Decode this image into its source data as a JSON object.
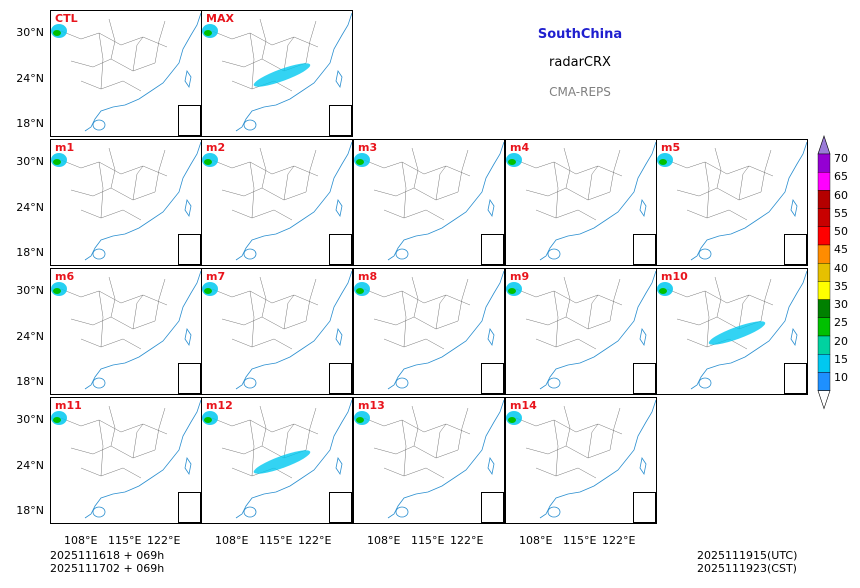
{
  "info": {
    "region": "SouthChina",
    "variable": "radarCRX",
    "model": "CMA-REPS"
  },
  "panels": [
    {
      "label": "CTL"
    },
    {
      "label": "MAX"
    },
    {
      "label": "m1"
    },
    {
      "label": "m2"
    },
    {
      "label": "m3"
    },
    {
      "label": "m4"
    },
    {
      "label": "m5"
    },
    {
      "label": "m6"
    },
    {
      "label": "m7"
    },
    {
      "label": "m8"
    },
    {
      "label": "m9"
    },
    {
      "label": "m10"
    },
    {
      "label": "m11"
    },
    {
      "label": "m12"
    },
    {
      "label": "m13"
    },
    {
      "label": "m14"
    }
  ],
  "axes": {
    "lat_labels": [
      "30°N",
      "24°N",
      "18°N"
    ],
    "lon_labels": [
      "108°E",
      "115°E",
      "122°E"
    ]
  },
  "colorbar": {
    "levels": [
      "10",
      "15",
      "20",
      "25",
      "30",
      "35",
      "40",
      "45",
      "50",
      "55",
      "60",
      "65",
      "70"
    ],
    "colors": [
      "#1e90ff",
      "#00c8f0",
      "#00d2a0",
      "#00c000",
      "#008000",
      "#ffff00",
      "#e6c000",
      "#ff8c00",
      "#ff0000",
      "#c80000",
      "#b40000",
      "#ff00ff",
      "#9400d3"
    ],
    "top_color": "#9a7bd8"
  },
  "footer": {
    "init_utc": "2025111618  +  069h",
    "init_cst": "2025111702  +  069h",
    "valid_utc": "2025111915(UTC)",
    "valid_cst": "2025111923(CST)"
  }
}
